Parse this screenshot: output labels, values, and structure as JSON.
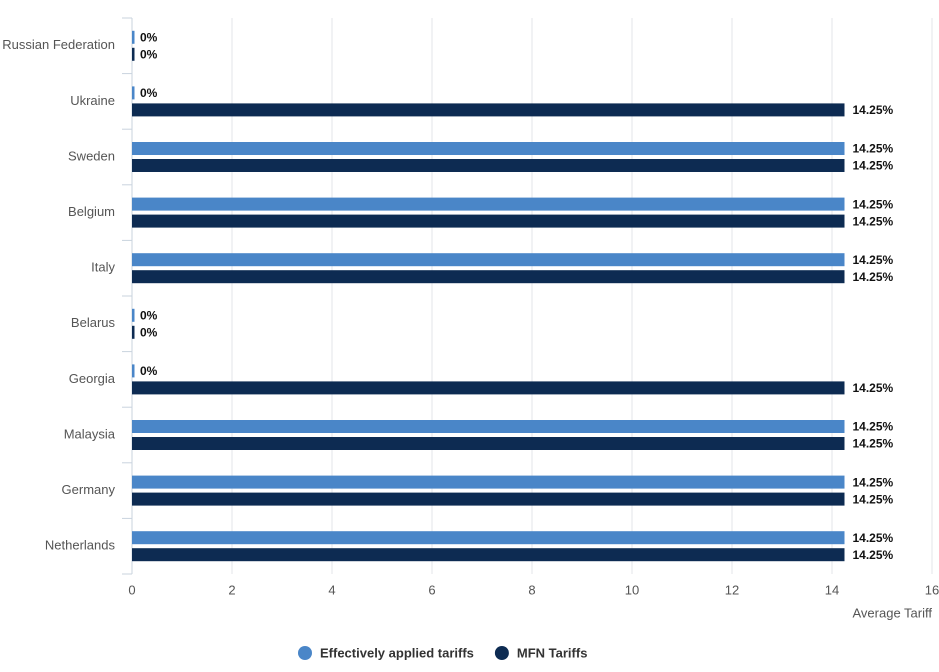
{
  "chart_data": {
    "type": "bar",
    "orientation": "horizontal",
    "categories": [
      "Russian Federation",
      "Ukraine",
      "Sweden",
      "Belgium",
      "Italy",
      "Belarus",
      "Georgia",
      "Malaysia",
      "Germany",
      "Netherlands"
    ],
    "series": [
      {
        "name": "Effectively applied tariffs",
        "color": "#4a86c8",
        "values": [
          0,
          0,
          14.25,
          14.25,
          14.25,
          0,
          0,
          14.25,
          14.25,
          14.25
        ],
        "value_labels": [
          "0%",
          "0%",
          "14.25%",
          "14.25%",
          "14.25%",
          "0%",
          "0%",
          "14.25%",
          "14.25%",
          "14.25%"
        ]
      },
      {
        "name": "MFN Tariffs",
        "color": "#0d2b52",
        "values": [
          0,
          14.25,
          14.25,
          14.25,
          14.25,
          0,
          14.25,
          14.25,
          14.25,
          14.25
        ],
        "value_labels": [
          "0%",
          "14.25%",
          "14.25%",
          "14.25%",
          "14.25%",
          "0%",
          "14.25%",
          "14.25%",
          "14.25%",
          "14.25%"
        ]
      }
    ],
    "x_label": "Average Tariff",
    "xlim": [
      0,
      16
    ],
    "xticks": [
      0,
      2,
      4,
      6,
      8,
      10,
      12,
      14,
      16
    ],
    "grid": true
  }
}
